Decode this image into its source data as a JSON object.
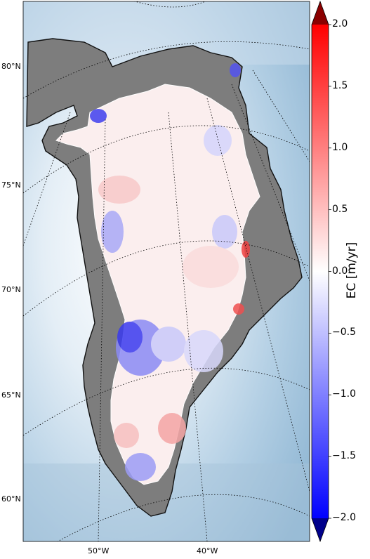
{
  "map": {
    "lat_labels": [
      "80°N",
      "75°N",
      "70°N",
      "65°N",
      "60°N"
    ],
    "lon_labels": [
      "50°W",
      "40°W"
    ],
    "colormap": "bwr",
    "ocean_color": "#a9c8df",
    "land_color": "#8d8d8d"
  },
  "colorbar": {
    "label": "EC [m/yr]",
    "ticks": [
      "2.0",
      "1.5",
      "1.0",
      "0.5",
      "0.0",
      "−0.5",
      "−1.0",
      "−1.5",
      "−2.0"
    ],
    "range": [
      -2.0,
      2.0
    ],
    "extend": "both",
    "min_color": "#00008b",
    "max_color": "#8b0000"
  }
}
